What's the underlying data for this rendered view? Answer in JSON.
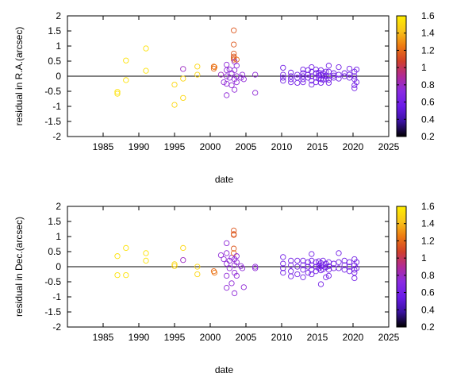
{
  "chart_data": [
    {
      "type": "scatter",
      "xlabel": "date",
      "ylabel": "residual in R.A.(arcsec)",
      "xlim": [
        1980,
        2025
      ],
      "ylim": [
        -2,
        2
      ],
      "xticks": [
        "1985",
        "1990",
        "1995",
        "2000",
        "2005",
        "2010",
        "2015",
        "2020",
        "2025"
      ],
      "yticks": [
        "2",
        "1.5",
        "1",
        "0.5",
        "0",
        "-0.5",
        "-1",
        "-1.5",
        "-2"
      ],
      "colorbar": {
        "range": [
          0.2,
          1.6
        ],
        "ticks": [
          "1.6",
          "1.4",
          "1.2",
          "1",
          "0.8",
          "0.6",
          "0.4",
          "0.2"
        ],
        "palette": [
          "#000000",
          "#3a12a0",
          "#6a1be8",
          "#8a2be2",
          "#b22a96",
          "#d1402a",
          "#ee7a12",
          "#f8c41a",
          "#ffee00"
        ]
      },
      "reference_line": 0,
      "points": [
        [
          1987.0,
          -0.52,
          1.55
        ],
        [
          1987.0,
          -0.58,
          1.55
        ],
        [
          1988.2,
          0.52,
          1.55
        ],
        [
          1988.2,
          -0.13,
          1.55
        ],
        [
          1991.0,
          0.92,
          1.55
        ],
        [
          1991.0,
          0.18,
          1.55
        ],
        [
          1995.0,
          -0.28,
          1.5
        ],
        [
          1995.0,
          -0.95,
          1.5
        ],
        [
          1996.2,
          0.24,
          0.8
        ],
        [
          1996.2,
          -0.72,
          1.5
        ],
        [
          1996.2,
          -0.08,
          1.5
        ],
        [
          1998.2,
          0.32,
          1.5
        ],
        [
          1998.2,
          0.05,
          1.5
        ],
        [
          2000.5,
          0.32,
          1.2
        ],
        [
          2000.5,
          0.25,
          1.2
        ],
        [
          2000.6,
          0.3,
          1.25
        ],
        [
          2001.5,
          0.05,
          0.8
        ],
        [
          2001.9,
          -0.2,
          0.75
        ],
        [
          2002.3,
          0.38,
          0.75
        ],
        [
          2002.3,
          0.2,
          0.75
        ],
        [
          2002.3,
          0.0,
          0.75
        ],
        [
          2002.3,
          -0.25,
          0.75
        ],
        [
          2002.3,
          -0.63,
          0.75
        ],
        [
          2002.7,
          0.22,
          0.75
        ],
        [
          2002.7,
          -0.05,
          0.75
        ],
        [
          2003.0,
          0.1,
          0.75
        ],
        [
          2003.0,
          -0.3,
          0.75
        ],
        [
          2003.3,
          1.52,
          1.15
        ],
        [
          2003.3,
          1.05,
          1.15
        ],
        [
          2003.3,
          0.75,
          1.15
        ],
        [
          2003.3,
          0.65,
          1.15
        ],
        [
          2003.3,
          0.6,
          1.15
        ],
        [
          2003.3,
          0.55,
          1.15
        ],
        [
          2003.4,
          0.48,
          0.75
        ],
        [
          2003.4,
          0.2,
          0.75
        ],
        [
          2003.4,
          -0.1,
          0.75
        ],
        [
          2003.4,
          -0.45,
          0.75
        ],
        [
          2003.7,
          0.55,
          1.2
        ],
        [
          2003.7,
          0.35,
          0.75
        ],
        [
          2003.7,
          0.0,
          0.75
        ],
        [
          2003.7,
          -0.2,
          0.75
        ],
        [
          2004.3,
          -0.05,
          0.75
        ],
        [
          2004.5,
          0.05,
          0.75
        ],
        [
          2004.7,
          -0.1,
          0.75
        ],
        [
          2006.3,
          0.05,
          0.75
        ],
        [
          2006.3,
          -0.55,
          0.75
        ],
        [
          2010.2,
          0.28,
          0.6
        ],
        [
          2010.2,
          0.05,
          0.6
        ],
        [
          2010.2,
          -0.05,
          0.6
        ],
        [
          2010.2,
          -0.15,
          0.6
        ],
        [
          2011.3,
          0.12,
          0.6
        ],
        [
          2011.3,
          0.0,
          0.6
        ],
        [
          2011.3,
          -0.1,
          0.6
        ],
        [
          2011.3,
          -0.2,
          0.6
        ],
        [
          2012.2,
          0.05,
          0.6
        ],
        [
          2012.2,
          -0.05,
          0.6
        ],
        [
          2012.2,
          -0.22,
          0.6
        ],
        [
          2013.0,
          0.22,
          0.6
        ],
        [
          2013.0,
          0.1,
          0.6
        ],
        [
          2013.0,
          0.0,
          0.6
        ],
        [
          2013.0,
          -0.1,
          0.6
        ],
        [
          2013.0,
          -0.2,
          0.6
        ],
        [
          2013.7,
          0.2,
          0.6
        ],
        [
          2013.7,
          0.05,
          0.6
        ],
        [
          2013.7,
          -0.05,
          0.6
        ],
        [
          2014.2,
          0.3,
          0.6
        ],
        [
          2014.2,
          0.15,
          0.6
        ],
        [
          2014.2,
          0.0,
          0.6
        ],
        [
          2014.2,
          -0.15,
          0.6
        ],
        [
          2014.2,
          -0.28,
          0.6
        ],
        [
          2014.8,
          0.22,
          0.6
        ],
        [
          2014.8,
          0.1,
          0.6
        ],
        [
          2014.8,
          -0.05,
          0.6
        ],
        [
          2014.8,
          -0.2,
          0.6
        ],
        [
          2015.2,
          0.12,
          0.6
        ],
        [
          2015.2,
          0.02,
          0.6
        ],
        [
          2015.2,
          -0.08,
          0.6
        ],
        [
          2015.5,
          0.2,
          0.6
        ],
        [
          2015.5,
          0.05,
          0.6
        ],
        [
          2015.5,
          -0.1,
          0.6
        ],
        [
          2015.5,
          -0.22,
          0.6
        ],
        [
          2015.8,
          0.1,
          0.6
        ],
        [
          2015.8,
          0.0,
          0.6
        ],
        [
          2015.8,
          -0.12,
          0.6
        ],
        [
          2016.2,
          0.15,
          0.6
        ],
        [
          2016.2,
          0.02,
          0.6
        ],
        [
          2016.2,
          -0.1,
          0.6
        ],
        [
          2016.6,
          0.35,
          0.6
        ],
        [
          2016.6,
          0.15,
          0.6
        ],
        [
          2016.6,
          0.0,
          0.6
        ],
        [
          2016.6,
          -0.12,
          0.6
        ],
        [
          2016.6,
          -0.22,
          0.6
        ],
        [
          2017.3,
          0.1,
          0.6
        ],
        [
          2017.3,
          0.02,
          0.6
        ],
        [
          2017.3,
          -0.05,
          0.6
        ],
        [
          2018.0,
          0.3,
          0.6
        ],
        [
          2018.0,
          0.05,
          0.6
        ],
        [
          2018.0,
          -0.08,
          0.6
        ],
        [
          2018.8,
          0.1,
          0.6
        ],
        [
          2018.8,
          0.0,
          0.6
        ],
        [
          2019.5,
          0.25,
          0.6
        ],
        [
          2019.5,
          0.05,
          0.6
        ],
        [
          2019.5,
          -0.05,
          0.6
        ],
        [
          2020.2,
          0.15,
          0.6
        ],
        [
          2020.2,
          0.0,
          0.6
        ],
        [
          2020.2,
          -0.1,
          0.6
        ],
        [
          2020.2,
          -0.3,
          0.6
        ],
        [
          2020.2,
          -0.4,
          0.6
        ],
        [
          2020.5,
          0.22,
          0.6
        ],
        [
          2020.5,
          -0.2,
          0.6
        ]
      ]
    },
    {
      "type": "scatter",
      "xlabel": "date",
      "ylabel": "residual in Dec.(arcsec)",
      "xlim": [
        1980,
        2025
      ],
      "ylim": [
        -2,
        2
      ],
      "xticks": [
        "1985",
        "1990",
        "1995",
        "2000",
        "2005",
        "2010",
        "2015",
        "2020",
        "2025"
      ],
      "yticks": [
        "2",
        "1.5",
        "1",
        "0.5",
        "0",
        "-0.5",
        "-1",
        "-1.5",
        "-2"
      ],
      "colorbar": {
        "range": [
          0.2,
          1.6
        ],
        "ticks": [
          "1.6",
          "1.4",
          "1.2",
          "1",
          "0.8",
          "0.6",
          "0.4",
          "0.2"
        ],
        "palette": [
          "#000000",
          "#3a12a0",
          "#6a1be8",
          "#8a2be2",
          "#b22a96",
          "#d1402a",
          "#ee7a12",
          "#f8c41a",
          "#ffee00"
        ]
      },
      "reference_line": 0,
      "points": [
        [
          1987.0,
          0.35,
          1.55
        ],
        [
          1987.0,
          -0.28,
          1.55
        ],
        [
          1988.2,
          0.62,
          1.55
        ],
        [
          1988.2,
          -0.28,
          1.55
        ],
        [
          1991.0,
          0.45,
          1.55
        ],
        [
          1991.0,
          0.2,
          1.55
        ],
        [
          1995.0,
          0.08,
          1.5
        ],
        [
          1995.0,
          0.02,
          1.5
        ],
        [
          1996.2,
          0.62,
          1.5
        ],
        [
          1996.2,
          0.22,
          0.8
        ],
        [
          1998.2,
          0.0,
          1.5
        ],
        [
          1998.2,
          -0.25,
          1.5
        ],
        [
          2000.5,
          -0.15,
          1.2
        ],
        [
          2000.6,
          -0.2,
          1.25
        ],
        [
          2001.5,
          0.38,
          0.75
        ],
        [
          2001.9,
          0.25,
          0.75
        ],
        [
          2002.3,
          0.78,
          0.75
        ],
        [
          2002.3,
          0.45,
          0.75
        ],
        [
          2002.3,
          0.1,
          0.75
        ],
        [
          2002.3,
          -0.3,
          0.75
        ],
        [
          2002.3,
          -0.7,
          0.75
        ],
        [
          2002.7,
          0.2,
          0.75
        ],
        [
          2002.7,
          -0.05,
          0.75
        ],
        [
          2003.0,
          0.3,
          0.75
        ],
        [
          2003.0,
          -0.55,
          0.75
        ],
        [
          2003.3,
          1.2,
          1.15
        ],
        [
          2003.3,
          1.08,
          1.15
        ],
        [
          2003.3,
          1.05,
          1.15
        ],
        [
          2003.3,
          0.6,
          1.15
        ],
        [
          2003.3,
          0.45,
          1.2
        ],
        [
          2003.4,
          0.25,
          0.75
        ],
        [
          2003.4,
          0.05,
          0.75
        ],
        [
          2003.4,
          -0.2,
          0.75
        ],
        [
          2003.4,
          -0.88,
          0.75
        ],
        [
          2003.7,
          0.35,
          0.75
        ],
        [
          2003.7,
          0.15,
          0.75
        ],
        [
          2003.7,
          -0.3,
          0.75
        ],
        [
          2004.3,
          0.02,
          0.75
        ],
        [
          2004.5,
          -0.05,
          0.75
        ],
        [
          2004.7,
          -0.68,
          0.75
        ],
        [
          2006.3,
          0.0,
          0.75
        ],
        [
          2006.3,
          -0.05,
          0.75
        ],
        [
          2010.2,
          0.32,
          0.6
        ],
        [
          2010.2,
          0.1,
          0.6
        ],
        [
          2010.2,
          -0.05,
          0.6
        ],
        [
          2010.2,
          -0.2,
          0.6
        ],
        [
          2011.3,
          0.2,
          0.6
        ],
        [
          2011.3,
          0.05,
          0.6
        ],
        [
          2011.3,
          -0.15,
          0.6
        ],
        [
          2011.3,
          -0.32,
          0.6
        ],
        [
          2012.2,
          0.2,
          0.6
        ],
        [
          2012.2,
          0.0,
          0.6
        ],
        [
          2012.2,
          -0.25,
          0.6
        ],
        [
          2013.0,
          0.2,
          0.6
        ],
        [
          2013.0,
          0.05,
          0.6
        ],
        [
          2013.0,
          -0.1,
          0.6
        ],
        [
          2013.0,
          -0.35,
          0.6
        ],
        [
          2013.7,
          0.15,
          0.6
        ],
        [
          2013.7,
          0.0,
          0.6
        ],
        [
          2013.7,
          -0.2,
          0.6
        ],
        [
          2014.2,
          0.42,
          0.6
        ],
        [
          2014.2,
          0.2,
          0.6
        ],
        [
          2014.2,
          0.05,
          0.6
        ],
        [
          2014.2,
          -0.1,
          0.6
        ],
        [
          2014.2,
          -0.25,
          0.6
        ],
        [
          2014.8,
          0.15,
          0.6
        ],
        [
          2014.8,
          0.0,
          0.6
        ],
        [
          2014.8,
          -0.15,
          0.6
        ],
        [
          2015.2,
          0.18,
          0.6
        ],
        [
          2015.2,
          0.05,
          0.6
        ],
        [
          2015.2,
          -0.05,
          0.6
        ],
        [
          2015.5,
          0.12,
          0.6
        ],
        [
          2015.5,
          0.0,
          0.6
        ],
        [
          2015.5,
          -0.12,
          0.6
        ],
        [
          2015.5,
          -0.58,
          0.6
        ],
        [
          2015.8,
          0.2,
          0.6
        ],
        [
          2015.8,
          0.05,
          0.6
        ],
        [
          2015.8,
          -0.08,
          0.6
        ],
        [
          2016.2,
          0.1,
          0.6
        ],
        [
          2016.2,
          -0.02,
          0.6
        ],
        [
          2016.2,
          -0.35,
          0.6
        ],
        [
          2016.6,
          0.15,
          0.6
        ],
        [
          2016.6,
          0.02,
          0.6
        ],
        [
          2016.6,
          -0.1,
          0.6
        ],
        [
          2016.6,
          -0.3,
          0.6
        ],
        [
          2017.3,
          0.1,
          0.6
        ],
        [
          2017.3,
          -0.05,
          0.6
        ],
        [
          2018.0,
          0.45,
          0.6
        ],
        [
          2018.0,
          0.15,
          0.6
        ],
        [
          2018.0,
          -0.05,
          0.6
        ],
        [
          2018.8,
          0.2,
          0.6
        ],
        [
          2018.8,
          0.05,
          0.6
        ],
        [
          2018.8,
          -0.1,
          0.6
        ],
        [
          2019.5,
          0.15,
          0.6
        ],
        [
          2019.5,
          0.0,
          0.6
        ],
        [
          2019.5,
          -0.15,
          0.6
        ],
        [
          2020.2,
          0.25,
          0.6
        ],
        [
          2020.2,
          0.05,
          0.6
        ],
        [
          2020.2,
          -0.1,
          0.6
        ],
        [
          2020.2,
          -0.2,
          0.6
        ],
        [
          2020.2,
          -0.38,
          0.6
        ],
        [
          2020.5,
          0.15,
          0.6
        ],
        [
          2020.5,
          -0.05,
          0.6
        ]
      ]
    }
  ]
}
